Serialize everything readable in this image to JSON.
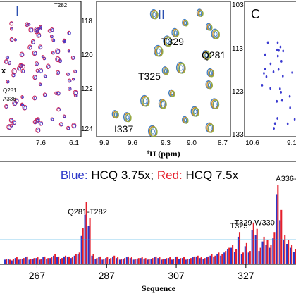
{
  "panels": {
    "I": {
      "label": "I",
      "x_ticks": [
        "7.6",
        "6.1"
      ],
      "annotations": [
        "T282",
        "Q281",
        "A336",
        "x"
      ],
      "peak_colors": [
        "#c8245a",
        "#3a3ad0"
      ]
    },
    "II": {
      "label": "II",
      "xlabel": "¹H (ppm)",
      "x_ticks": [
        "9.9",
        "9.6",
        "9.3",
        "9.0",
        "8.7"
      ],
      "y_ticks": [
        "118",
        "120",
        "122",
        "124"
      ],
      "annotations": [
        "T329",
        "Q281",
        "T325",
        "I337"
      ],
      "peak_colors": [
        "#3f7fc4",
        "#c98a2a",
        "#8fae4a"
      ]
    },
    "C": {
      "label": "C",
      "x_ticks": [
        "10.6",
        "9.1"
      ],
      "y_ticks": [
        "103",
        "113",
        "123",
        "133"
      ],
      "peak_color": "#3a3ad0"
    }
  },
  "chart_data": {
    "type": "bar",
    "title": "Blue: HCQ 3.75x; Red: HCQ 7.5x",
    "title_parts": {
      "blue_label": "Blue:",
      "blue_text": " HCQ 3.75x; ",
      "red_label": "Red:",
      "red_text": " HCQ 7.5x"
    },
    "xlabel": "Sequence",
    "x_ticks": [
      267,
      287,
      307,
      327
    ],
    "xlim": [
      258,
      341
    ],
    "ylim": [
      0,
      1
    ],
    "threshold": 0.3,
    "colors": {
      "blue": "#2b36c9",
      "red": "#e5202c",
      "threshold": "#1aa0e0"
    },
    "annotations": [
      {
        "text": "Q281-T282",
        "x": 281.5
      },
      {
        "text": "T325",
        "x": 325
      },
      {
        "text": "T329-W330",
        "x": 329.5
      },
      {
        "text": "A336-",
        "x": 336
      }
    ],
    "x": [
      258,
      259,
      260,
      261,
      262,
      263,
      264,
      265,
      266,
      267,
      268,
      269,
      270,
      271,
      272,
      273,
      274,
      275,
      276,
      277,
      278,
      279,
      280,
      281,
      282,
      283,
      284,
      285,
      286,
      287,
      288,
      289,
      290,
      291,
      292,
      293,
      294,
      295,
      296,
      297,
      298,
      299,
      300,
      301,
      302,
      303,
      304,
      305,
      306,
      307,
      308,
      309,
      310,
      311,
      312,
      313,
      314,
      315,
      316,
      317,
      318,
      319,
      320,
      321,
      322,
      323,
      324,
      325,
      326,
      327,
      328,
      329,
      330,
      331,
      332,
      333,
      334,
      335,
      336,
      337,
      338,
      339,
      340,
      341
    ],
    "series": [
      {
        "name": "HCQ 3.75x",
        "color": "#2b36c9",
        "values": [
          0.05,
          0.06,
          0.04,
          0.07,
          0.05,
          0.06,
          0.08,
          0.05,
          0.06,
          0.07,
          0.05,
          0.08,
          0.06,
          0.07,
          0.1,
          0.08,
          0.06,
          0.09,
          0.08,
          0.07,
          0.1,
          0.12,
          0.35,
          0.62,
          0.48,
          0.1,
          0.06,
          0.08,
          0.05,
          0.07,
          0.06,
          0.09,
          0.07,
          0.05,
          0.06,
          0.08,
          0.07,
          0.05,
          0.06,
          0.07,
          0.06,
          0.05,
          0.06,
          0.08,
          0.07,
          0.05,
          0.06,
          0.07,
          0.05,
          0.08,
          0.06,
          0.07,
          0.05,
          0.06,
          0.08,
          0.09,
          0.07,
          0.06,
          0.08,
          0.1,
          0.09,
          0.12,
          0.1,
          0.14,
          0.18,
          0.2,
          0.15,
          0.34,
          0.12,
          0.22,
          0.14,
          0.42,
          0.36,
          0.16,
          0.28,
          0.24,
          0.2,
          0.32,
          0.88,
          0.55,
          0.3,
          0.25,
          0.2,
          0.15
        ]
      },
      {
        "name": "HCQ 7.5x",
        "color": "#e5202c",
        "values": [
          0.06,
          0.05,
          0.06,
          0.08,
          0.06,
          0.07,
          0.09,
          0.06,
          0.07,
          0.08,
          0.06,
          0.09,
          0.07,
          0.08,
          0.12,
          0.09,
          0.07,
          0.1,
          0.09,
          0.08,
          0.12,
          0.14,
          0.45,
          0.78,
          0.58,
          0.12,
          0.07,
          0.09,
          0.06,
          0.08,
          0.07,
          0.1,
          0.08,
          0.06,
          0.07,
          0.09,
          0.08,
          0.06,
          0.07,
          0.08,
          0.07,
          0.06,
          0.07,
          0.09,
          0.08,
          0.06,
          0.07,
          0.08,
          0.06,
          0.09,
          0.07,
          0.08,
          0.06,
          0.07,
          0.09,
          0.1,
          0.08,
          0.07,
          0.09,
          0.12,
          0.1,
          0.14,
          0.12,
          0.16,
          0.2,
          0.24,
          0.18,
          0.4,
          0.14,
          0.26,
          0.16,
          0.52,
          0.44,
          0.2,
          0.34,
          0.3,
          0.24,
          0.4,
          1.0,
          0.68,
          0.36,
          0.3,
          0.24,
          0.18
        ]
      }
    ]
  }
}
